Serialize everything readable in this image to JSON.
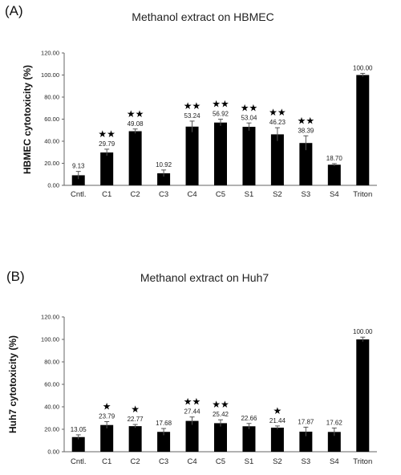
{
  "chart_data": [
    {
      "type": "bar",
      "panel": "(A)",
      "title": "Methanol extract on HBMEC",
      "ylabel": "HBMEC  cytotoxicity (%)",
      "xlabel": "",
      "ylim": [
        0,
        120
      ],
      "yticks": [
        "0.00",
        "20.00",
        "40.00",
        "60.00",
        "80.00",
        "100.00",
        "120.00"
      ],
      "categories": [
        "Cntl.",
        "C1",
        "C2",
        "C3",
        "C4",
        "C5",
        "S1",
        "S2",
        "S3",
        "S4",
        "Triton"
      ],
      "values": [
        9.13,
        29.79,
        49.08,
        10.92,
        53.24,
        56.92,
        53.04,
        46.23,
        38.39,
        18.7,
        100.0
      ],
      "value_labels": [
        "9.13",
        "29.79",
        "49.08",
        "10.92",
        "53.24",
        "56.92",
        "53.04",
        "46.23",
        "38.39",
        "18.70",
        "100.00"
      ],
      "errors": [
        3.5,
        3,
        2,
        3,
        5,
        3,
        3.5,
        6,
        6.5,
        1,
        1.5
      ],
      "significance": [
        "",
        "★★",
        "★★",
        "",
        "★★",
        "★★",
        "★★",
        "★★",
        "★★",
        "",
        ""
      ],
      "grid": false,
      "legend": "none"
    },
    {
      "type": "bar",
      "panel": "(B)",
      "title": "Methanol extract on Huh7",
      "ylabel": "Huh7  cytotoxicity (%)",
      "xlabel": "",
      "ylim": [
        0,
        120
      ],
      "yticks": [
        "0.00",
        "20.00",
        "40.00",
        "60.00",
        "80.00",
        "100.00",
        "120.00"
      ],
      "categories": [
        "Cntl.",
        "C1",
        "C2",
        "C3",
        "C4",
        "C5",
        "S1",
        "S2",
        "S3",
        "S4",
        "Triton"
      ],
      "values": [
        13.05,
        23.79,
        22.77,
        17.68,
        27.44,
        25.42,
        22.66,
        21.44,
        17.87,
        17.62,
        100.0
      ],
      "value_labels": [
        "13.05",
        "23.79",
        "22.77",
        "17.68",
        "27.44",
        "25.42",
        "22.66",
        "21.44",
        "17.87",
        "17.62",
        "100.00"
      ],
      "errors": [
        2,
        3,
        1.5,
        3,
        3.5,
        3,
        2.5,
        1.5,
        4,
        3.5,
        2
      ],
      "significance": [
        "",
        "★",
        "★",
        "",
        "★★",
        "★★",
        "",
        "★",
        "",
        "",
        ""
      ],
      "grid": false,
      "legend": "none"
    }
  ]
}
